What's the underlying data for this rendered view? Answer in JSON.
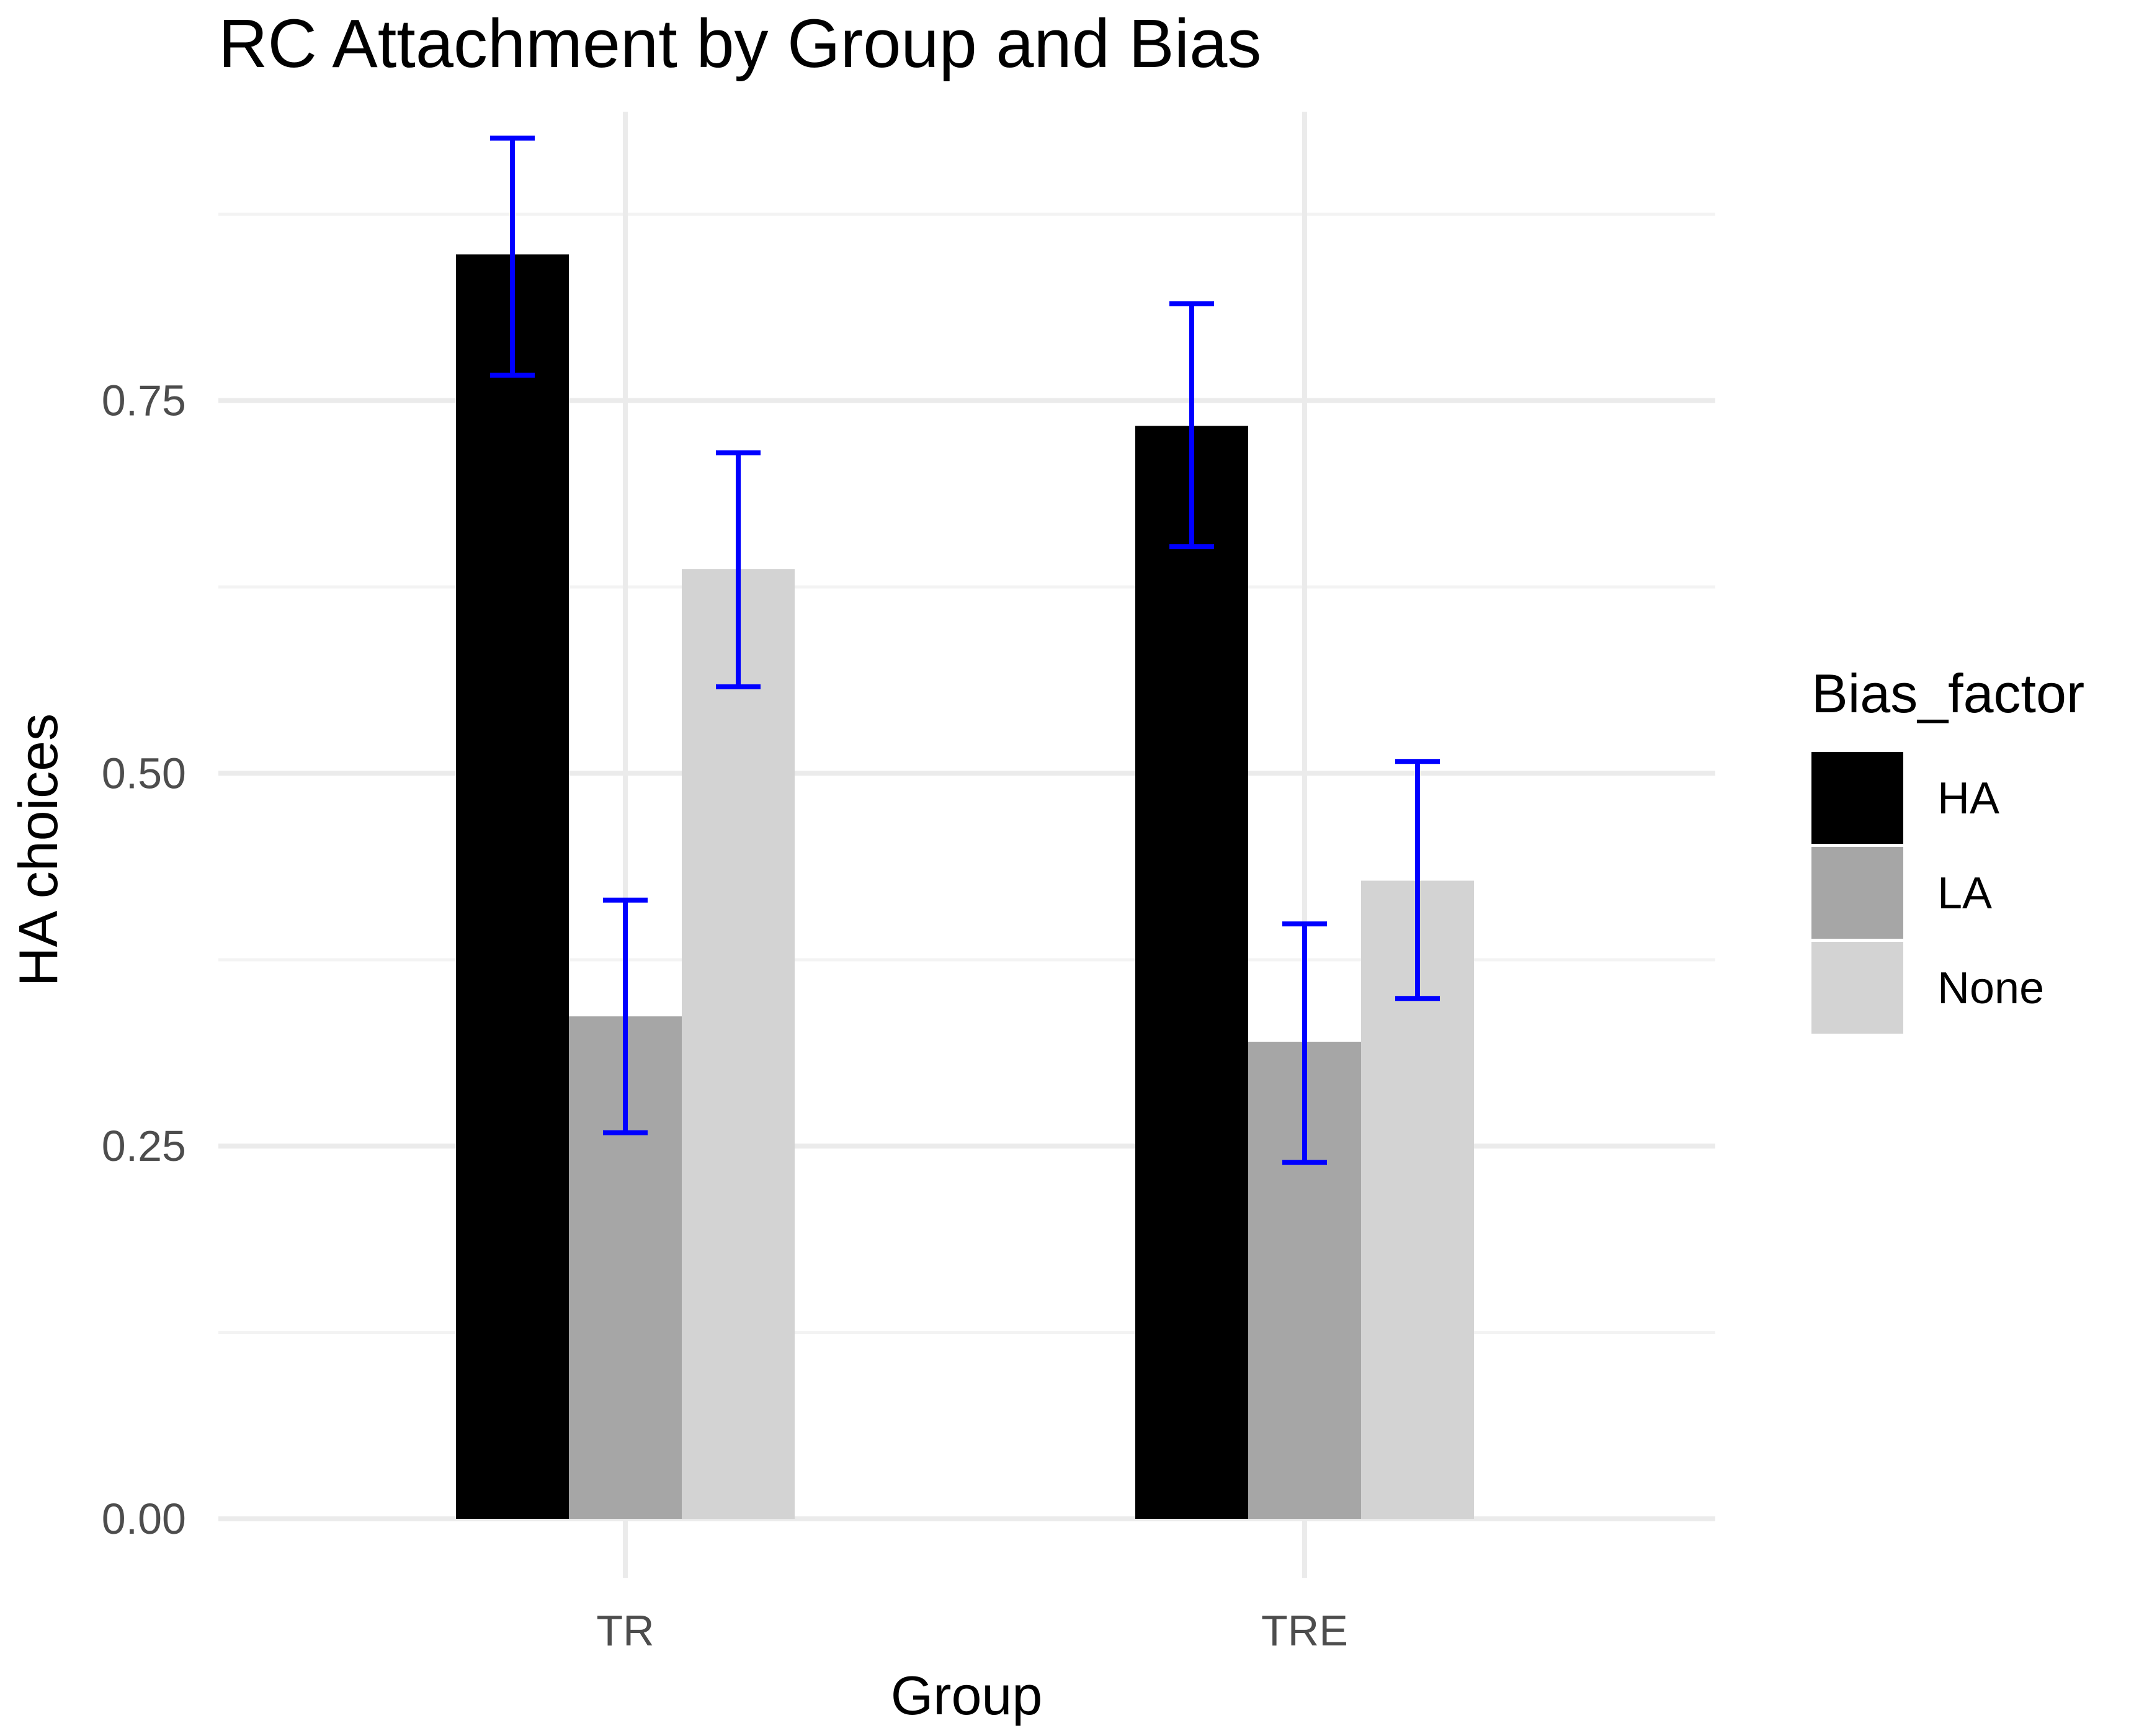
{
  "chart_data": {
    "type": "bar",
    "title": "RC Attachment by Group and Bias",
    "xlabel": "Group",
    "ylabel": "HA choices",
    "categories": [
      "TR",
      "TRE"
    ],
    "series": [
      {
        "name": "HA",
        "color": "#000000",
        "values": [
          0.848,
          0.733
        ],
        "error_low": [
          0.767,
          0.652
        ],
        "error_high": [
          0.926,
          0.815
        ]
      },
      {
        "name": "LA",
        "color": "#a6a6a6",
        "values": [
          0.337,
          0.32
        ],
        "error_low": [
          0.259,
          0.239
        ],
        "error_high": [
          0.415,
          0.399
        ]
      },
      {
        "name": "None",
        "color": "#d3d3d3",
        "values": [
          0.637,
          0.428
        ],
        "error_low": [
          0.558,
          0.349
        ],
        "error_high": [
          0.715,
          0.508
        ]
      }
    ],
    "error_bar_color": "#0000ff",
    "ylim": [
      0,
      0.95
    ],
    "yticks": [
      0.0,
      0.25,
      0.5,
      0.75
    ],
    "ytick_labels": [
      "0.00",
      "0.25",
      "0.50",
      "0.75"
    ],
    "grid": true,
    "legend": {
      "title": "Bias_factor",
      "position": "right"
    }
  }
}
